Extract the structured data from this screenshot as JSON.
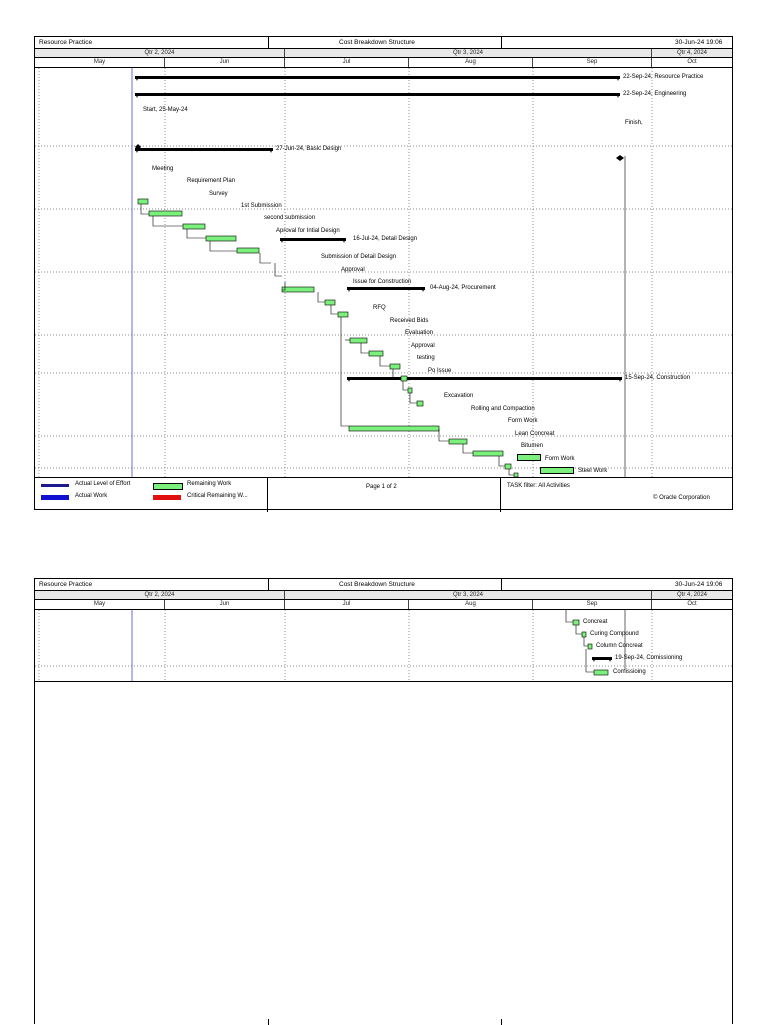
{
  "report": {
    "left_title": "Resource Practice",
    "center_title": "Cost Breakdown Structure",
    "date": "30-Jun-24 19:06"
  },
  "timeline": {
    "quarters": [
      "Qtr 2, 2024",
      "Qtr 3, 2024",
      "Qtr 4, 2024"
    ],
    "months": [
      "May",
      "Jun",
      "Jul",
      "Aug",
      "Sep",
      "Oct"
    ]
  },
  "page1": {
    "summary_labels": {
      "resource_practice": "22-Sep-24, Resource Practice",
      "engineering": "22-Sep-24, Engineering",
      "start": "Start, 25-May-24",
      "finish": "Finish,",
      "basic_design": "27-Jun-24, Basic Design",
      "detail_design": "16-Jul-24, Detail Design",
      "procurement": "04-Aug-24, Procurement",
      "construction": "15-Sep-24, Construction"
    },
    "tasks": {
      "meeting": "Meeting",
      "requirement_plan": "Requirement Plan",
      "survey": "Survey",
      "first_submission": "1st Submission",
      "second_submission": "second submission",
      "approval_initial": "Aproval for Intial Design",
      "submission_detail": "Submission of Detail Design",
      "approval_detail": "Approval",
      "issue_construction": "Issue for Construction",
      "rfq": "RFQ",
      "received_bids": "Received Bids",
      "evaluation": "Evaluation",
      "approval_proc": "Approval",
      "testing": "testing",
      "po_issue": "Po Issue",
      "excavation": "Excavation",
      "rolling": "Rolling and Compaction",
      "form_work_1": "Form Work",
      "lean_concreat": "Lean Concreat",
      "bitumen": "Bitumen",
      "form_work_2": "Form Work",
      "steel_work": "Steel Work"
    },
    "footer": {
      "legend": {
        "actual_loe": "Actual Level of Effort",
        "actual_work": "Actual Work",
        "remaining_work": "Remaining Work",
        "critical_remaining": "Critical Remaining W..."
      },
      "page_label": "Page 1 of 2",
      "filter": "TASK filter: All Activities",
      "copyright": "© Oracle Corporation"
    }
  },
  "page2": {
    "tasks": {
      "concreat": "Concreat",
      "curing": "Curing Compound",
      "column_concreat": "Column Concreat",
      "commissioning_summary": "19-Sep-24, Comissioning",
      "commissioning": "Comissioing"
    }
  },
  "colors": {
    "remaining_work": "#7cf07c",
    "actual_loe": "#1a1a8c",
    "actual_work": "#1010d0",
    "critical": "#e01010",
    "data_date_line": "#6b6bd8"
  }
}
